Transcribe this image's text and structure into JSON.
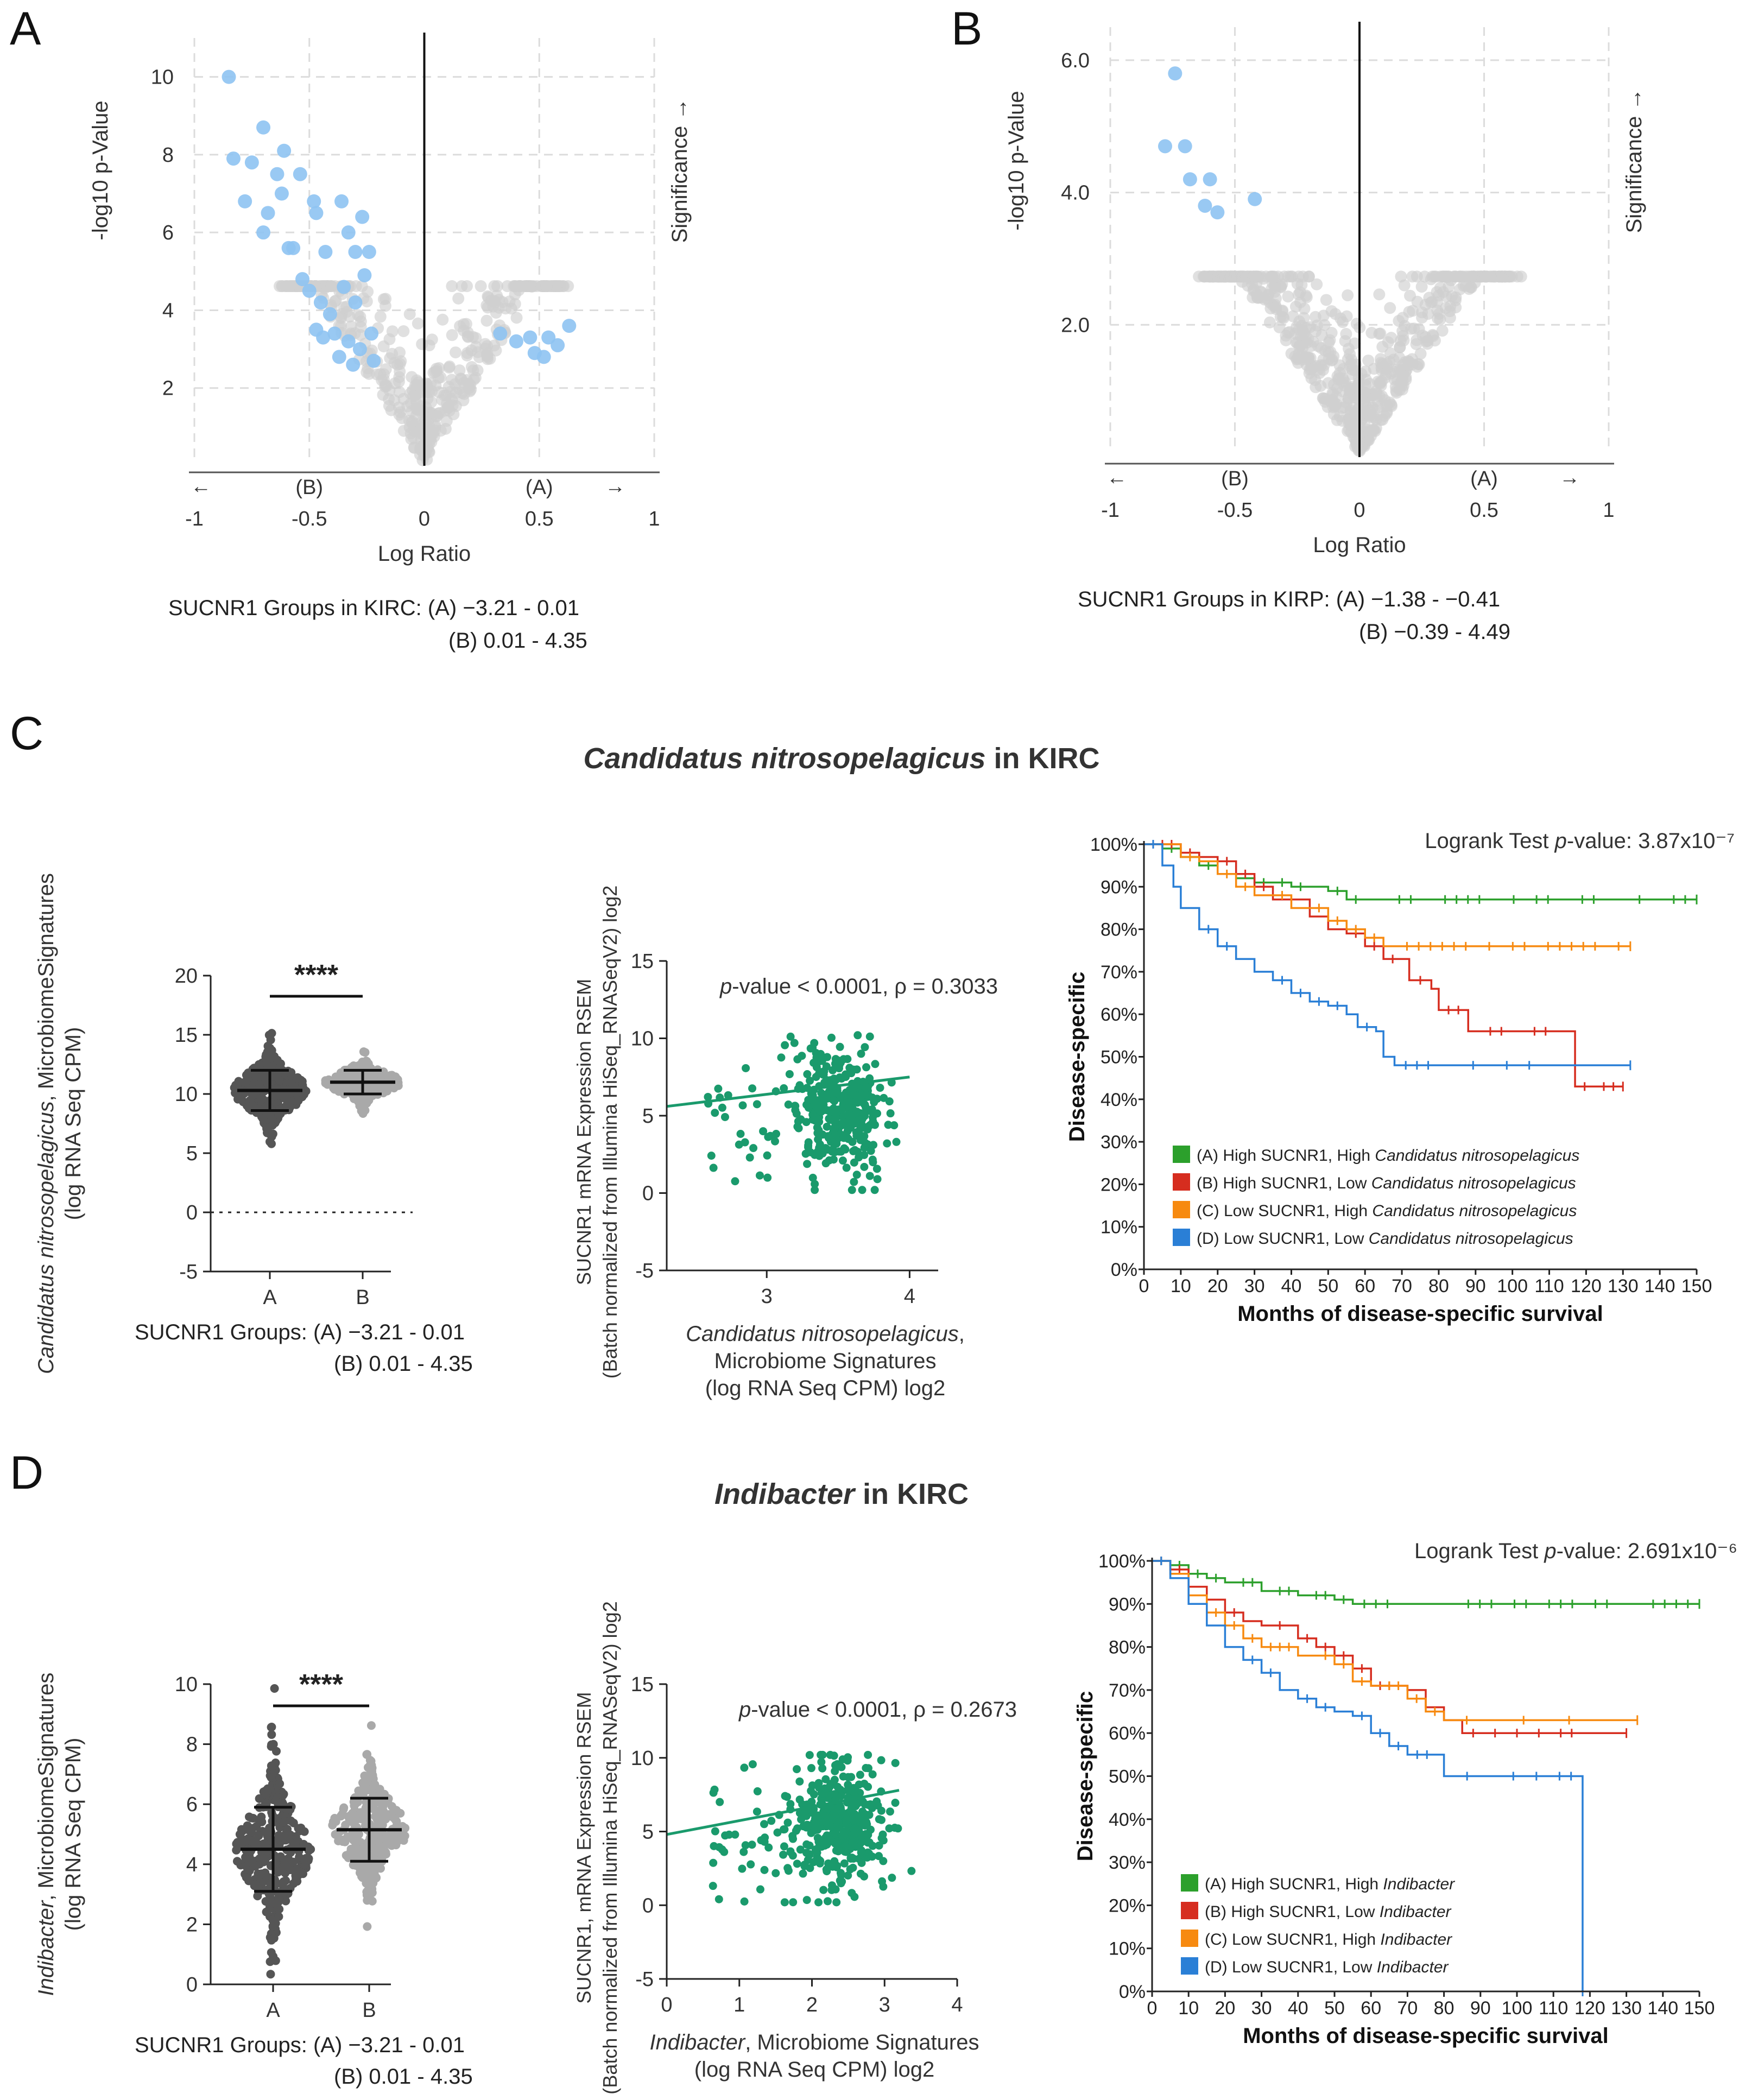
{
  "chart_data": [
    {
      "id": "A",
      "type": "scatter",
      "panel_label": "A",
      "subtype": "volcano",
      "xlabel": "Log Ratio",
      "ylabel": "-log10 p-Value",
      "right_label": "Significance →",
      "xlim": [
        -1,
        1
      ],
      "ylim": [
        0,
        11
      ],
      "x_ticks": [
        "-1",
        "-0.5",
        "0",
        "0.5",
        "1"
      ],
      "y_ticks": [
        "2",
        "4",
        "6",
        "8",
        "10"
      ],
      "arrow_left": "←",
      "arrow_right": "→",
      "group_left": "(B)",
      "group_right": "(A)",
      "caption_line1": "SUCNR1 Groups in KIRC: (A) −3.21 - 0.01",
      "caption_line2": "(B) 0.01 - 4.35",
      "significant_points": [
        [
          -0.85,
          10.0
        ],
        [
          -0.83,
          7.9
        ],
        [
          -0.7,
          8.7
        ],
        [
          -0.75,
          7.8
        ],
        [
          -0.61,
          8.1
        ],
        [
          -0.64,
          7.5
        ],
        [
          -0.78,
          6.8
        ],
        [
          -0.68,
          6.5
        ],
        [
          -0.62,
          7.0
        ],
        [
          -0.54,
          7.5
        ],
        [
          -0.48,
          6.8
        ],
        [
          -0.59,
          5.6
        ],
        [
          -0.57,
          5.6
        ],
        [
          -0.47,
          6.5
        ],
        [
          -0.36,
          6.8
        ],
        [
          -0.43,
          5.5
        ],
        [
          -0.33,
          6.0
        ],
        [
          -0.27,
          6.4
        ],
        [
          -0.3,
          5.5
        ],
        [
          -0.24,
          5.5
        ],
        [
          -0.53,
          4.8
        ],
        [
          -0.5,
          4.5
        ],
        [
          -0.45,
          4.2
        ],
        [
          -0.41,
          3.9
        ],
        [
          -0.35,
          4.6
        ],
        [
          -0.3,
          4.2
        ],
        [
          -0.26,
          4.9
        ],
        [
          -0.47,
          3.5
        ],
        [
          -0.44,
          3.3
        ],
        [
          -0.39,
          3.4
        ],
        [
          -0.33,
          3.2
        ],
        [
          -0.23,
          3.4
        ],
        [
          -0.28,
          3.0
        ],
        [
          -0.37,
          2.8
        ],
        [
          -0.31,
          2.6
        ],
        [
          -0.22,
          2.7
        ],
        [
          -0.7,
          6.0
        ],
        [
          0.33,
          3.4
        ],
        [
          0.4,
          3.2
        ],
        [
          0.46,
          3.3
        ],
        [
          0.54,
          3.3
        ],
        [
          0.63,
          3.6
        ],
        [
          0.58,
          3.1
        ],
        [
          0.52,
          2.8
        ],
        [
          0.48,
          2.9
        ]
      ],
      "n_background_points": 420
    },
    {
      "id": "B",
      "type": "scatter",
      "panel_label": "B",
      "subtype": "volcano",
      "xlabel": "Log Ratio",
      "ylabel": "-log10 p-Value",
      "right_label": "Significance →",
      "xlim": [
        -1,
        1
      ],
      "ylim": [
        0,
        6.5
      ],
      "x_ticks": [
        "-1",
        "-0.5",
        "0",
        "0.5",
        "1"
      ],
      "y_ticks": [
        "2.0",
        "4.0",
        "6.0"
      ],
      "arrow_left": "←",
      "arrow_right": "→",
      "group_left": "(B)",
      "group_right": "(A)",
      "caption_line1": "SUCNR1 Groups in KIRP: (A) −1.38 - −0.41",
      "caption_line2": "(B) −0.39 - 4.49",
      "significant_points": [
        [
          -0.74,
          5.8
        ],
        [
          -0.78,
          4.7
        ],
        [
          -0.7,
          4.7
        ],
        [
          -0.68,
          4.2
        ],
        [
          -0.6,
          4.2
        ],
        [
          -0.62,
          3.8
        ],
        [
          -0.57,
          3.7
        ],
        [
          -0.42,
          3.9
        ]
      ],
      "n_background_points": 620
    },
    {
      "id": "C-dot",
      "type": "scatter",
      "panel_label": "C",
      "subtype": "dot-plot",
      "title_italic": "Candidatus nitrosopelagicus",
      "title_rest": " in KIRC",
      "ylabel_italic": "Candidatus nitrosopelagicus",
      "ylabel_rest": ", MicrobiomeSignatures",
      "ylabel_line2": "(log RNA Seq CPM)",
      "categories": [
        "A",
        "B"
      ],
      "ylim": [
        -5,
        20
      ],
      "y_ticks": [
        "-5",
        "0",
        "5",
        "10",
        "15",
        "20"
      ],
      "means": [
        10.3,
        11.0
      ],
      "sd": [
        1.7,
        1.0
      ],
      "significance": "****",
      "caption_line1": "SUCNR1 Groups: (A) −3.21 - 0.01",
      "caption_line2": "(B) 0.01 - 4.35"
    },
    {
      "id": "C-corr",
      "type": "scatter",
      "subtype": "correlation",
      "annotation_italic": "p",
      "annotation_rest": "-value < 0.0001, ρ = 0.3033",
      "ylabel_line1": "SUCNR1 mRNA Expression RSEM",
      "ylabel_line2": "(Batch normalized from Illumina HiSeq_RNASeqV2) log2",
      "xlabel_italic": "Candidatus nitrosopelagicus",
      "xlabel_rest": ",",
      "xlabel_line2": "Microbiome Signatures",
      "xlabel_line3": "(log RNA Seq CPM) log2",
      "xlim": [
        2.3,
        4.2
      ],
      "ylim": [
        -5,
        15
      ],
      "x_ticks": [
        "3",
        "4"
      ],
      "x_tick_values": [
        3,
        4
      ],
      "y_ticks": [
        "-5",
        "0",
        "5",
        "10",
        "15"
      ],
      "fit_line": [
        [
          2.3,
          5.6
        ],
        [
          4.0,
          7.5
        ]
      ],
      "cluster_center": [
        3.5,
        5.5
      ],
      "n_points": 380,
      "color": "#1a9a6c"
    },
    {
      "id": "C-km",
      "type": "line",
      "subtype": "kaplan-meier",
      "logrank_prefix": "Logrank Test ",
      "logrank_italic": "p",
      "logrank_value": "-value: 3.87x10⁻⁷",
      "ylabel": "Disease-specific",
      "xlabel": "Months of disease-specific survival",
      "x_ticks": [
        "0",
        "10",
        "20",
        "30",
        "40",
        "50",
        "60",
        "70",
        "80",
        "90",
        "100",
        "110",
        "120",
        "130",
        "140",
        "150"
      ],
      "y_ticks": [
        "0%",
        "10%",
        "20%",
        "30%",
        "40%",
        "50%",
        "60%",
        "70%",
        "80%",
        "90%",
        "100%"
      ],
      "xlim": [
        0,
        150
      ],
      "ylim": [
        0,
        100
      ],
      "series": [
        {
          "name": "(A) High SUCNR1, High ",
          "name_italic": "Candidatus nitrosopelagicus",
          "color": "#2ca02c",
          "points": [
            [
              0,
              100
            ],
            [
              5,
              99
            ],
            [
              10,
              97
            ],
            [
              15,
              95
            ],
            [
              20,
              93
            ],
            [
              25,
              92
            ],
            [
              30,
              91
            ],
            [
              40,
              90
            ],
            [
              50,
              89
            ],
            [
              55,
              87
            ],
            [
              60,
              87
            ],
            [
              150,
              87
            ]
          ]
        },
        {
          "name": "(B) High SUCNR1, Low ",
          "name_italic": "Candidatus nitrosopelagicus",
          "color": "#d62d1f",
          "points": [
            [
              0,
              100
            ],
            [
              10,
              98
            ],
            [
              15,
              97
            ],
            [
              20,
              96
            ],
            [
              25,
              93
            ],
            [
              30,
              90
            ],
            [
              35,
              87
            ],
            [
              45,
              83
            ],
            [
              50,
              80
            ],
            [
              55,
              79
            ],
            [
              60,
              76
            ],
            [
              65,
              73
            ],
            [
              70,
              73
            ],
            [
              72,
              68
            ],
            [
              78,
              66
            ],
            [
              80,
              61
            ],
            [
              88,
              56
            ],
            [
              115,
              56
            ],
            [
              117,
              43
            ],
            [
              130,
              43
            ]
          ]
        },
        {
          "name": "(C) Low SUCNR1, High ",
          "name_italic": "Candidatus nitrosopelagicus",
          "color": "#f78a10",
          "points": [
            [
              0,
              100
            ],
            [
              10,
              97
            ],
            [
              15,
              96
            ],
            [
              20,
              93
            ],
            [
              25,
              90
            ],
            [
              30,
              88
            ],
            [
              40,
              85
            ],
            [
              50,
              82
            ],
            [
              55,
              80
            ],
            [
              60,
              78
            ],
            [
              65,
              76
            ],
            [
              132,
              76
            ]
          ]
        },
        {
          "name": "(D) Low SUCNR1, Low ",
          "name_italic": "Candidatus nitrosopelagicus",
          "color": "#2a7fd6",
          "points": [
            [
              0,
              100
            ],
            [
              5,
              95
            ],
            [
              8,
              90
            ],
            [
              10,
              85
            ],
            [
              15,
              80
            ],
            [
              20,
              76
            ],
            [
              25,
              73
            ],
            [
              30,
              70
            ],
            [
              35,
              68
            ],
            [
              40,
              65
            ],
            [
              45,
              63
            ],
            [
              50,
              62
            ],
            [
              55,
              60
            ],
            [
              58,
              57
            ],
            [
              63,
              56
            ],
            [
              65,
              50
            ],
            [
              68,
              48
            ],
            [
              132,
              48
            ]
          ]
        }
      ]
    },
    {
      "id": "D-dot",
      "type": "scatter",
      "panel_label": "D",
      "subtype": "dot-plot",
      "title_italic": "Indibacter",
      "title_rest": " in KIRC",
      "ylabel_italic": "Indibacter",
      "ylabel_rest": ", MicrobiomeSignatures",
      "ylabel_line2": "(log RNA Seq CPM)",
      "categories": [
        "A",
        "B"
      ],
      "ylim": [
        0,
        10
      ],
      "y_ticks": [
        "0",
        "2",
        "4",
        "6",
        "8",
        "10"
      ],
      "means": [
        4.5,
        5.15
      ],
      "sd": [
        1.4,
        1.05
      ],
      "significance": "****",
      "caption_line1": "SUCNR1 Groups: (A) −3.21 - 0.01",
      "caption_line2": "(B) 0.01 - 4.35"
    },
    {
      "id": "D-corr",
      "type": "scatter",
      "subtype": "correlation",
      "annotation_italic": "p",
      "annotation_rest": "-value < 0.0001, ρ = 0.2673",
      "ylabel_line1": "SUCNR1, mRNA Expression RSEM",
      "ylabel_line2": "(Batch normalized from Illumina HiSeq_RNASeqV2) log2",
      "xlabel_italic": "Indibacter",
      "xlabel_rest": ", Microbiome Signatures",
      "xlabel_line2": "(log RNA Seq CPM) log2",
      "xlabel_line3": "",
      "xlim": [
        0,
        4
      ],
      "ylim": [
        -5,
        15
      ],
      "x_ticks": [
        "0",
        "1",
        "2",
        "3",
        "4"
      ],
      "x_tick_values": [
        0,
        1,
        2,
        3,
        4
      ],
      "y_ticks": [
        "-5",
        "0",
        "5",
        "10",
        "15"
      ],
      "fit_line": [
        [
          0,
          4.8
        ],
        [
          3.2,
          7.8
        ]
      ],
      "cluster_center": [
        2.35,
        5.6
      ],
      "n_points": 420,
      "color": "#1a9a6c"
    },
    {
      "id": "D-km",
      "type": "line",
      "subtype": "kaplan-meier",
      "logrank_prefix": "Logrank Test ",
      "logrank_italic": "p",
      "logrank_value": "-value: 2.691x10⁻⁶",
      "ylabel": "Disease-specific",
      "xlabel": "Months of disease-specific survival",
      "x_ticks": [
        "0",
        "10",
        "20",
        "30",
        "40",
        "50",
        "60",
        "70",
        "80",
        "90",
        "100",
        "110",
        "120",
        "130",
        "140",
        "150"
      ],
      "y_ticks": [
        "0%",
        "10%",
        "20%",
        "30%",
        "40%",
        "50%",
        "60%",
        "70%",
        "80%",
        "90%",
        "100%"
      ],
      "xlim": [
        0,
        150
      ],
      "ylim": [
        0,
        100
      ],
      "series": [
        {
          "name": "(A) High SUCNR1, High ",
          "name_italic": "Indibacter",
          "color": "#2ca02c",
          "points": [
            [
              0,
              100
            ],
            [
              5,
              99
            ],
            [
              10,
              97
            ],
            [
              15,
              96
            ],
            [
              20,
              95
            ],
            [
              30,
              93
            ],
            [
              40,
              92
            ],
            [
              50,
              91
            ],
            [
              55,
              90
            ],
            [
              150,
              90
            ]
          ]
        },
        {
          "name": "(B) High SUCNR1, Low ",
          "name_italic": "Indibacter",
          "color": "#d62d1f",
          "points": [
            [
              0,
              100
            ],
            [
              5,
              98
            ],
            [
              10,
              94
            ],
            [
              15,
              91
            ],
            [
              20,
              88
            ],
            [
              25,
              86
            ],
            [
              30,
              85
            ],
            [
              40,
              82
            ],
            [
              45,
              80
            ],
            [
              50,
              78
            ],
            [
              55,
              75
            ],
            [
              60,
              71
            ],
            [
              70,
              70
            ],
            [
              75,
              66
            ],
            [
              80,
              63
            ],
            [
              85,
              60
            ],
            [
              130,
              60
            ]
          ]
        },
        {
          "name": "(C) Low SUCNR1, High ",
          "name_italic": "Indibacter",
          "color": "#f78a10",
          "points": [
            [
              0,
              100
            ],
            [
              5,
              97
            ],
            [
              10,
              92
            ],
            [
              15,
              88
            ],
            [
              20,
              85
            ],
            [
              25,
              82
            ],
            [
              30,
              80
            ],
            [
              40,
              78
            ],
            [
              50,
              76
            ],
            [
              55,
              72
            ],
            [
              60,
              71
            ],
            [
              70,
              68
            ],
            [
              75,
              65
            ],
            [
              80,
              63
            ],
            [
              133,
              63
            ]
          ]
        },
        {
          "name": "(D) Low SUCNR1, Low ",
          "name_italic": "Indibacter",
          "color": "#2a7fd6",
          "points": [
            [
              0,
              100
            ],
            [
              5,
              96
            ],
            [
              10,
              90
            ],
            [
              15,
              85
            ],
            [
              20,
              80
            ],
            [
              25,
              77
            ],
            [
              30,
              74
            ],
            [
              35,
              70
            ],
            [
              40,
              68
            ],
            [
              45,
              66
            ],
            [
              50,
              65
            ],
            [
              55,
              64
            ],
            [
              60,
              60
            ],
            [
              65,
              57
            ],
            [
              70,
              55
            ],
            [
              78,
              55
            ],
            [
              80,
              50
            ],
            [
              118,
              50
            ],
            [
              118,
              0
            ]
          ]
        }
      ]
    }
  ]
}
